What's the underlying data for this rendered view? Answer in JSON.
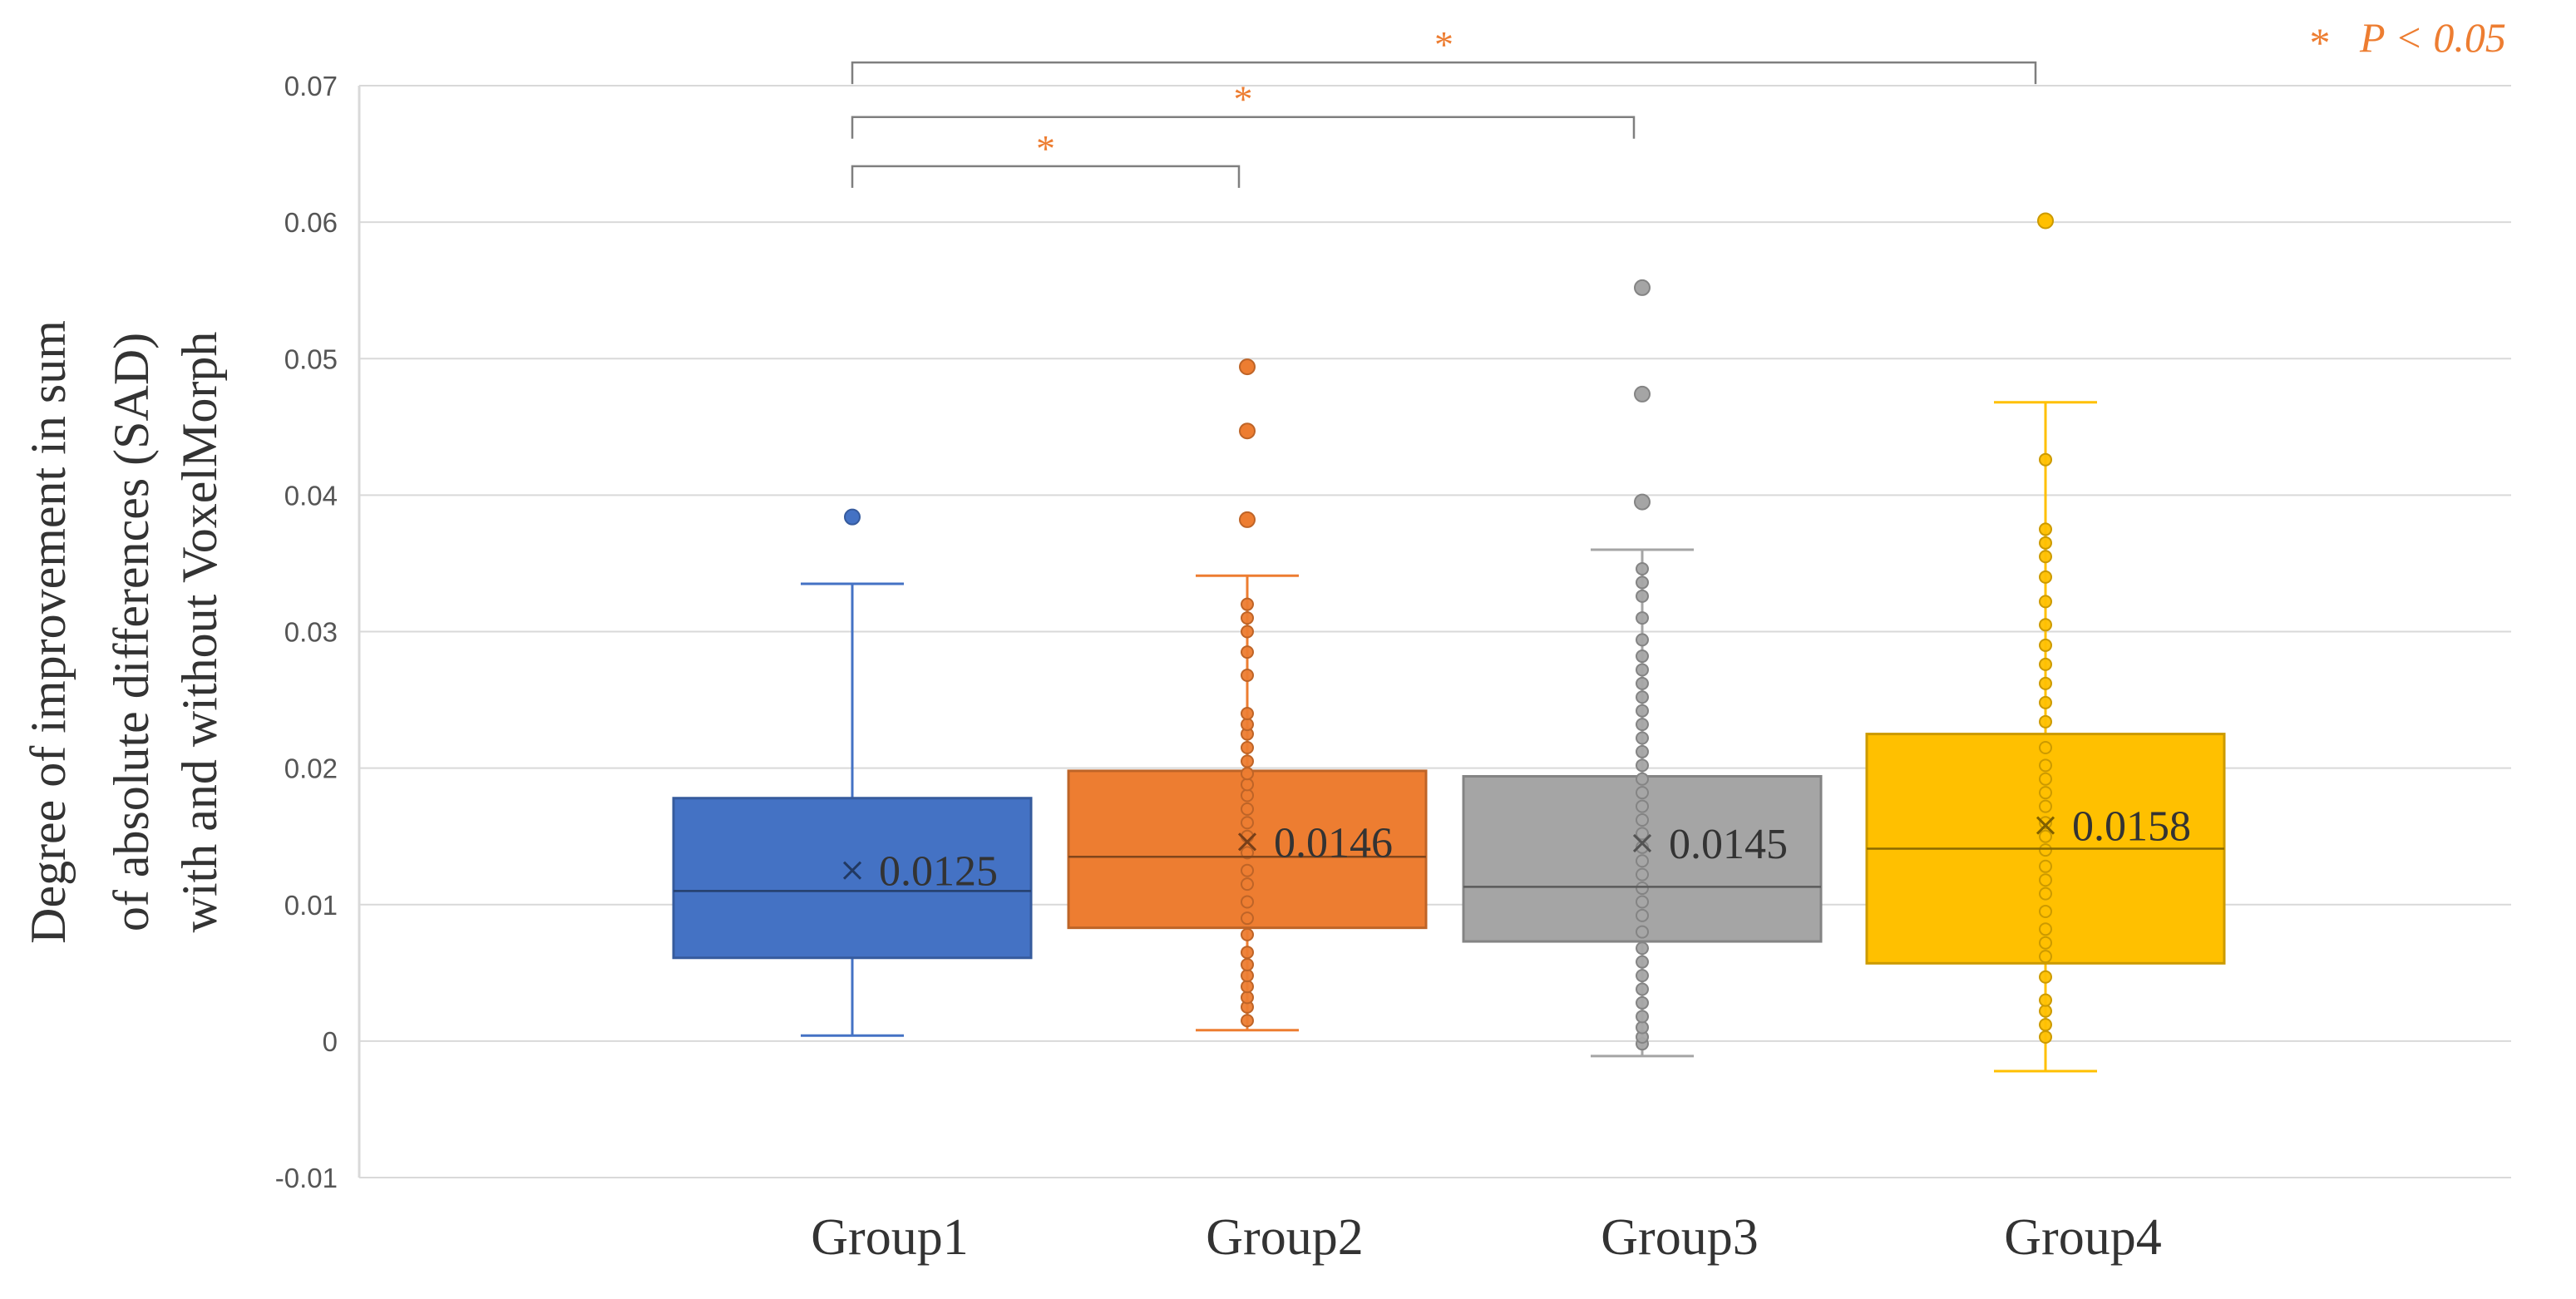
{
  "chart_data": {
    "type": "box",
    "title": "",
    "xlabel": "",
    "ylabel_lines": [
      "Degree of improvement in  sum",
      "of absolute differences (SAD)",
      "with and without VoxelMorph"
    ],
    "ylim": [
      -0.01,
      0.07
    ],
    "yticks": [
      {
        "value": -0.01,
        "label": "-0.01"
      },
      {
        "value": 0,
        "label": "0"
      },
      {
        "value": 0.01,
        "label": "0.01"
      },
      {
        "value": 0.02,
        "label": "0.02"
      },
      {
        "value": 0.03,
        "label": "0.03"
      },
      {
        "value": 0.04,
        "label": "0.04"
      },
      {
        "value": 0.05,
        "label": "0.05"
      },
      {
        "value": 0.06,
        "label": "0.06"
      },
      {
        "value": 0.07,
        "label": "0.07"
      }
    ],
    "grid": true,
    "categories": [
      "Group1",
      "Group2",
      "Group3",
      "Group4"
    ],
    "series": [
      {
        "name": "Group1",
        "color": "#4472C4",
        "whisker_low": 0.0004,
        "q1": 0.0061,
        "median": 0.011,
        "q3": 0.0178,
        "whisker_high": 0.0335,
        "mean": 0.0125,
        "mean_label": "0.0125",
        "outliers": [
          0.0384
        ],
        "points": []
      },
      {
        "name": "Group2",
        "color": "#ED7D31",
        "whisker_low": 0.0008,
        "q1": 0.0083,
        "median": 0.0135,
        "q3": 0.0198,
        "whisker_high": 0.0341,
        "mean": 0.0146,
        "mean_label": "0.0146",
        "outliers": [
          0.0382,
          0.0447,
          0.0494
        ],
        "points": [
          0.0015,
          0.0025,
          0.0032,
          0.004,
          0.0048,
          0.0056,
          0.0065,
          0.0078,
          0.009,
          0.0102,
          0.0115,
          0.0125,
          0.0138,
          0.015,
          0.016,
          0.017,
          0.018,
          0.0188,
          0.0196,
          0.0205,
          0.0215,
          0.0225,
          0.0232,
          0.024,
          0.0268,
          0.0285,
          0.03,
          0.031,
          0.032
        ]
      },
      {
        "name": "Group3",
        "color": "#A5A5A5",
        "whisker_low": -0.0011,
        "q1": 0.0073,
        "median": 0.0113,
        "q3": 0.0194,
        "whisker_high": 0.036,
        "mean": 0.0145,
        "mean_label": "0.0145",
        "outliers": [
          0.0395,
          0.0474,
          0.0552
        ],
        "points": [
          -0.0002,
          0.0003,
          0.001,
          0.0018,
          0.0028,
          0.0038,
          0.0048,
          0.0058,
          0.0068,
          0.008,
          0.0092,
          0.0102,
          0.0112,
          0.0122,
          0.0132,
          0.0142,
          0.0152,
          0.0162,
          0.0172,
          0.0182,
          0.0192,
          0.0202,
          0.0212,
          0.0222,
          0.0232,
          0.0242,
          0.0252,
          0.0262,
          0.0272,
          0.0282,
          0.0294,
          0.031,
          0.0326,
          0.0336,
          0.0346
        ]
      },
      {
        "name": "Group4",
        "color": "#FFC000",
        "whisker_low": -0.0022,
        "q1": 0.0057,
        "median": 0.0141,
        "q3": 0.0225,
        "whisker_high": 0.0468,
        "mean": 0.0158,
        "mean_label": "0.0158",
        "outliers": [
          0.0601
        ],
        "points": [
          0.0003,
          0.0012,
          0.0022,
          0.003,
          0.0047,
          0.0062,
          0.0072,
          0.0082,
          0.0095,
          0.0108,
          0.0118,
          0.0128,
          0.014,
          0.015,
          0.016,
          0.0172,
          0.0182,
          0.0192,
          0.0202,
          0.0215,
          0.0234,
          0.0248,
          0.0262,
          0.0276,
          0.029,
          0.0305,
          0.0322,
          0.034,
          0.0355,
          0.0365,
          0.0375,
          0.0426
        ]
      }
    ],
    "annotations": {
      "significance": [
        {
          "from": "Group1",
          "to": "Group2",
          "label": "*",
          "y": 0.0641
        },
        {
          "from": "Group1",
          "to": "Group3",
          "label": "*",
          "y": 0.0677
        },
        {
          "from": "Group1",
          "to": "Group4",
          "label": "*",
          "y": 0.0717
        }
      ],
      "legend_star": "*",
      "legend_text": "P < 0.05",
      "legend_position": "top-right"
    }
  }
}
